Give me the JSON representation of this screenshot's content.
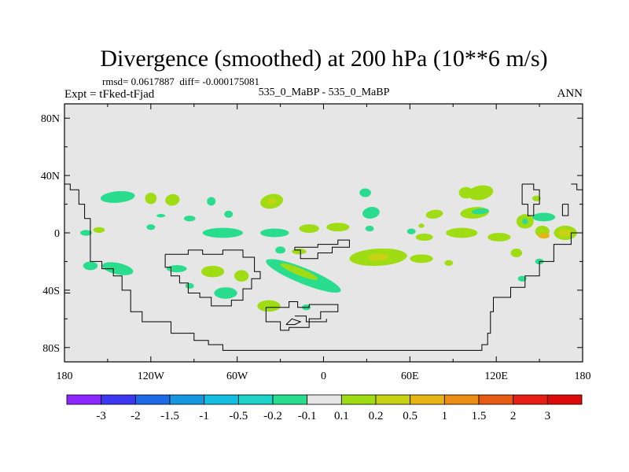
{
  "chart_data": {
    "type": "heatmap",
    "title": "Divergence (smoothed) at 200 hPa (10**6 m/s)",
    "stats_text": "rmsd= 0.0617887  diff= -0.000175081",
    "left_label": "Expt = tFked-tFjad",
    "center_label": "535_0_MaBP - 535_0_MaBP",
    "right_label": "ANN",
    "x_ticks": [
      "180",
      "120W",
      "60W",
      "0",
      "60E",
      "120E",
      "180"
    ],
    "y_ticks": [
      "80N",
      "40N",
      "0",
      "40S",
      "80S"
    ],
    "xlim": [
      -180,
      180
    ],
    "ylim": [
      -90,
      90
    ],
    "background_color": "#e6e6e6",
    "colorbar": {
      "labels": [
        "-3",
        "-2",
        "-1.5",
        "-1",
        "-0.5",
        "-0.2",
        "-0.1",
        "0.1",
        "0.2",
        "0.5",
        "1",
        "1.5",
        "2",
        "3"
      ],
      "colors": [
        "#8c28ff",
        "#3c37f0",
        "#1e69e6",
        "#1496e1",
        "#14bee1",
        "#1ed2c8",
        "#2adc8e",
        "#e6e6e6",
        "#a0dc14",
        "#c8d214",
        "#e6b414",
        "#eb8c14",
        "#e65a14",
        "#e61e14",
        "#dc0a0a"
      ]
    },
    "regions": [
      {
        "lon": -143,
        "lat": 25,
        "rlon": 12,
        "rlat": 4,
        "rot": -5,
        "color": "#2adc8e"
      },
      {
        "lon": -156,
        "lat": 2,
        "rlon": 4,
        "rlat": 2,
        "rot": 0,
        "color": "#a0dc14"
      },
      {
        "lon": -165,
        "lat": 0,
        "rlon": 4,
        "rlat": 2,
        "rot": 0,
        "color": "#2adc8e"
      },
      {
        "lon": -162,
        "lat": -23,
        "rlon": 5,
        "rlat": 3,
        "rot": 0,
        "color": "#2adc8e"
      },
      {
        "lon": -143,
        "lat": -25,
        "rlon": 11,
        "rlat": 4,
        "rot": 12,
        "color": "#2adc8e"
      },
      {
        "lon": -120,
        "lat": 24,
        "rlon": 4,
        "rlat": 4,
        "rot": 0,
        "color": "#a0dc14"
      },
      {
        "lon": -120,
        "lat": 4,
        "rlon": 3,
        "rlat": 2,
        "rot": 0,
        "color": "#2adc8e"
      },
      {
        "lon": -113,
        "lat": 12,
        "rlon": 3,
        "rlat": 1.2,
        "rot": 0,
        "color": "#2adc8e"
      },
      {
        "lon": -105,
        "lat": 23,
        "rlon": 5,
        "rlat": 4,
        "rot": -10,
        "color": "#a0dc14"
      },
      {
        "lon": -102,
        "lat": -25,
        "rlon": 7,
        "rlat": 2.5,
        "rot": 0,
        "color": "#2adc8e"
      },
      {
        "lon": -93,
        "lat": 10,
        "rlon": 4,
        "rlat": 2,
        "rot": 0,
        "color": "#2adc8e"
      },
      {
        "lon": -93,
        "lat": -37,
        "rlon": 3,
        "rlat": 2,
        "rot": 0,
        "color": "#2adc8e"
      },
      {
        "lon": -78,
        "lat": 22,
        "rlon": 3,
        "rlat": 3,
        "rot": 0,
        "color": "#2adc8e"
      },
      {
        "lon": -77,
        "lat": -27,
        "rlon": 8,
        "rlat": 4,
        "rot": 0,
        "color": "#a0dc14"
      },
      {
        "lon": -70,
        "lat": 0,
        "rlon": 14,
        "rlat": 3.5,
        "rot": 0,
        "color": "#2adc8e"
      },
      {
        "lon": -68,
        "lat": -42,
        "rlon": 8,
        "rlat": 4,
        "rot": 0,
        "color": "#2adc8e"
      },
      {
        "lon": -66,
        "lat": 13,
        "rlon": 3,
        "rlat": 2.5,
        "rot": 0,
        "color": "#2adc8e"
      },
      {
        "lon": -57,
        "lat": -30,
        "rlon": 5,
        "rlat": 4,
        "rot": 0,
        "color": "#a0dc14"
      },
      {
        "lon": -36,
        "lat": 22,
        "rlon": 8,
        "rlat": 5,
        "rot": -12,
        "color": "#a0dc14"
      },
      {
        "lon": -36,
        "lat": 22,
        "rlon": 3,
        "rlat": 2,
        "rot": 0,
        "color": "#c8d214"
      },
      {
        "lon": -34,
        "lat": 0,
        "rlon": 10,
        "rlat": 3,
        "rot": 0,
        "color": "#2adc8e"
      },
      {
        "lon": -30,
        "lat": -12,
        "rlon": 3.5,
        "rlat": 2.5,
        "rot": 0,
        "color": "#2adc8e"
      },
      {
        "lon": -10,
        "lat": 3,
        "rlon": 7,
        "rlat": 3,
        "rot": 0,
        "color": "#a0dc14"
      },
      {
        "lon": -17,
        "lat": -13,
        "rlon": 5,
        "rlat": 2,
        "rot": 0,
        "color": "#a0dc14"
      },
      {
        "lon": -14,
        "lat": -30,
        "rlon": 28,
        "rlat": 5.5,
        "rot": 22,
        "color": "#2adc8e"
      },
      {
        "lon": -17,
        "lat": -27,
        "rlon": 14,
        "rlat": 2.5,
        "rot": 22,
        "color": "#a0dc14"
      },
      {
        "lon": -12,
        "lat": -52,
        "rlon": 3,
        "rlat": 2,
        "rot": 0,
        "color": "#2adc8e"
      },
      {
        "lon": -38,
        "lat": -51,
        "rlon": 8,
        "rlat": 4,
        "rot": 0,
        "color": "#a0dc14"
      },
      {
        "lon": 10,
        "lat": 4,
        "rlon": 8,
        "rlat": 3,
        "rot": 0,
        "color": "#a0dc14"
      },
      {
        "lon": 32,
        "lat": 3,
        "rlon": 3,
        "rlat": 2,
        "rot": 0,
        "color": "#2adc8e"
      },
      {
        "lon": 29,
        "lat": 28,
        "rlon": 4,
        "rlat": 3,
        "rot": 0,
        "color": "#2adc8e"
      },
      {
        "lon": 33,
        "lat": 14,
        "rlon": 6,
        "rlat": 4,
        "rot": -10,
        "color": "#2adc8e"
      },
      {
        "lon": 38,
        "lat": -17,
        "rlon": 20,
        "rlat": 6,
        "rot": -3,
        "color": "#a0dc14"
      },
      {
        "lon": 38,
        "lat": -17,
        "rlon": 7,
        "rlat": 2.5,
        "rot": -3,
        "color": "#c8d214"
      },
      {
        "lon": 68,
        "lat": -18,
        "rlon": 8,
        "rlat": 3,
        "rot": 0,
        "color": "#a0dc14"
      },
      {
        "lon": 70,
        "lat": -3,
        "rlon": 6,
        "rlat": 2.5,
        "rot": 0,
        "color": "#a0dc14"
      },
      {
        "lon": 77,
        "lat": 13,
        "rlon": 6,
        "rlat": 3,
        "rot": -8,
        "color": "#a0dc14"
      },
      {
        "lon": 61,
        "lat": 1,
        "rlon": 3,
        "rlat": 2,
        "rot": 0,
        "color": "#2adc8e"
      },
      {
        "lon": 68,
        "lat": 5,
        "rlon": 2,
        "rlat": 1.5,
        "rot": 0,
        "color": "#a0dc14"
      },
      {
        "lon": 87,
        "lat": -21,
        "rlon": 3,
        "rlat": 2,
        "rot": 0,
        "color": "#a0dc14"
      },
      {
        "lon": 99,
        "lat": 28,
        "rlon": 5,
        "rlat": 4,
        "rot": 0,
        "color": "#a0dc14"
      },
      {
        "lon": 109,
        "lat": 28,
        "rlon": 9,
        "rlat": 5,
        "rot": -10,
        "color": "#a0dc14"
      },
      {
        "lon": 105,
        "lat": 14,
        "rlon": 10,
        "rlat": 4,
        "rot": -5,
        "color": "#a0dc14"
      },
      {
        "lon": 109,
        "lat": 15,
        "rlon": 6,
        "rlat": 2,
        "rot": -5,
        "color": "#2adc8e"
      },
      {
        "lon": 96,
        "lat": 0,
        "rlon": 11,
        "rlat": 3.5,
        "rot": 0,
        "color": "#a0dc14"
      },
      {
        "lon": 122,
        "lat": -3,
        "rlon": 8,
        "rlat": 3,
        "rot": 0,
        "color": "#a0dc14"
      },
      {
        "lon": 134,
        "lat": -14,
        "rlon": 4,
        "rlat": 3,
        "rot": 0,
        "color": "#a0dc14"
      },
      {
        "lon": 138,
        "lat": -32,
        "rlon": 3,
        "rlat": 2,
        "rot": 0,
        "color": "#2adc8e"
      },
      {
        "lon": 140,
        "lat": 8,
        "rlon": 6,
        "rlat": 5,
        "rot": 0,
        "color": "#a0dc14"
      },
      {
        "lon": 140,
        "lat": 8,
        "rlon": 2,
        "rlat": 2,
        "rot": 0,
        "color": "#2adc8e"
      },
      {
        "lon": 153,
        "lat": 11,
        "rlon": 8,
        "rlat": 3,
        "rot": 0,
        "color": "#2adc8e"
      },
      {
        "lon": 152,
        "lat": 1,
        "rlon": 5,
        "rlat": 4,
        "rot": 0,
        "color": "#a0dc14"
      },
      {
        "lon": 153,
        "lat": -2,
        "rlon": 4,
        "rlat": 2,
        "rot": 0,
        "color": "#e6b414"
      },
      {
        "lon": 168,
        "lat": 0,
        "rlon": 8,
        "rlat": 5,
        "rot": 0,
        "color": "#a0dc14"
      },
      {
        "lon": 168,
        "lat": 0,
        "rlon": 5,
        "rlat": 2.5,
        "rot": 0,
        "color": "#c8d214"
      },
      {
        "lon": 150,
        "lat": -20,
        "rlon": 3,
        "rlat": 2,
        "rot": 0,
        "color": "#2adc8e"
      },
      {
        "lon": 148,
        "lat": 24,
        "rlon": 3,
        "rlat": 2,
        "rot": 0,
        "color": "#a0dc14"
      }
    ],
    "coastlines": [
      [
        [
          -180,
          34
        ],
        [
          -176,
          34
        ],
        [
          -176,
          30
        ],
        [
          -170,
          30
        ],
        [
          -170,
          20
        ],
        [
          -166,
          20
        ],
        [
          -166,
          10
        ],
        [
          -162,
          10
        ],
        [
          -162,
          -20
        ],
        [
          -154,
          -20
        ],
        [
          -154,
          -25
        ],
        [
          -146,
          -25
        ],
        [
          -146,
          -30
        ],
        [
          -140,
          -30
        ],
        [
          -140,
          -40
        ],
        [
          -134,
          -40
        ],
        [
          -134,
          -55
        ],
        [
          -126,
          -55
        ],
        [
          -126,
          -62
        ],
        [
          -106,
          -62
        ],
        [
          -106,
          -70
        ],
        [
          -90,
          -70
        ],
        [
          -90,
          -75
        ],
        [
          -80,
          -75
        ],
        [
          -80,
          -78
        ],
        [
          -70,
          -78
        ],
        [
          -70,
          -82
        ],
        [
          110,
          -82
        ],
        [
          110,
          -78
        ],
        [
          114,
          -78
        ],
        [
          114,
          -70
        ],
        [
          116,
          -70
        ],
        [
          116,
          -55
        ],
        [
          118,
          -55
        ],
        [
          118,
          -45
        ],
        [
          130,
          -45
        ],
        [
          130,
          -38
        ],
        [
          140,
          -38
        ],
        [
          140,
          -30
        ],
        [
          150,
          -30
        ],
        [
          150,
          -20
        ],
        [
          160,
          -20
        ],
        [
          160,
          -8
        ],
        [
          172,
          -8
        ],
        [
          172,
          0
        ],
        [
          180,
          0
        ]
      ],
      [
        [
          -180,
          -42
        ],
        [
          -176,
          -42
        ]
      ],
      [
        [
          -110,
          -15
        ],
        [
          -94,
          -15
        ],
        [
          -94,
          -12
        ],
        [
          -84,
          -12
        ],
        [
          -84,
          -15
        ],
        [
          -70,
          -15
        ],
        [
          -70,
          -12
        ],
        [
          -56,
          -12
        ],
        [
          -56,
          -17
        ],
        [
          -48,
          -17
        ],
        [
          -48,
          -27
        ],
        [
          -44,
          -27
        ],
        [
          -44,
          -32
        ],
        [
          -50,
          -32
        ],
        [
          -50,
          -39
        ],
        [
          -56,
          -39
        ],
        [
          -56,
          -47
        ],
        [
          -64,
          -47
        ],
        [
          -64,
          -51
        ],
        [
          -78,
          -51
        ],
        [
          -78,
          -45
        ],
        [
          -86,
          -45
        ],
        [
          -86,
          -42
        ],
        [
          -94,
          -42
        ],
        [
          -94,
          -35
        ],
        [
          -100,
          -35
        ],
        [
          -100,
          -30
        ],
        [
          -106,
          -30
        ],
        [
          -106,
          -24
        ],
        [
          -110,
          -24
        ],
        [
          -110,
          -15
        ]
      ],
      [
        [
          -20,
          -10
        ],
        [
          -4,
          -10
        ],
        [
          -4,
          -8
        ],
        [
          10,
          -8
        ],
        [
          10,
          -5
        ],
        [
          18,
          -5
        ],
        [
          18,
          -10
        ],
        [
          6,
          -10
        ],
        [
          6,
          -14
        ],
        [
          -4,
          -14
        ],
        [
          -4,
          -18
        ],
        [
          -16,
          -18
        ],
        [
          -16,
          -12
        ],
        [
          -20,
          -12
        ],
        [
          -20,
          -10
        ]
      ],
      [
        [
          -40,
          -52
        ],
        [
          -24,
          -52
        ],
        [
          -24,
          -48
        ],
        [
          -18,
          -48
        ],
        [
          -18,
          -52
        ],
        [
          -10,
          -52
        ],
        [
          -10,
          -50
        ],
        [
          10,
          -50
        ],
        [
          10,
          -55
        ],
        [
          -2,
          -55
        ],
        [
          -2,
          -60
        ],
        [
          -10,
          -60
        ],
        [
          -10,
          -66
        ],
        [
          -24,
          -66
        ],
        [
          -24,
          -68
        ],
        [
          -30,
          -68
        ],
        [
          -30,
          -62
        ],
        [
          -40,
          -62
        ],
        [
          -40,
          -52
        ]
      ],
      [
        [
          -20,
          -58
        ],
        [
          -12,
          -58
        ],
        [
          -12,
          -62
        ],
        [
          2,
          -62
        ],
        [
          2,
          -60
        ]
      ],
      [
        [
          -26,
          -64
        ],
        [
          -22,
          -60
        ],
        [
          -16,
          -62
        ],
        [
          -20,
          -64
        ],
        [
          -26,
          -64
        ]
      ],
      [
        [
          138,
          34
        ],
        [
          146,
          34
        ],
        [
          146,
          30
        ],
        [
          150,
          30
        ],
        [
          150,
          20
        ],
        [
          146,
          20
        ],
        [
          146,
          12
        ],
        [
          142,
          12
        ],
        [
          142,
          20
        ],
        [
          138,
          20
        ],
        [
          138,
          34
        ]
      ],
      [
        [
          172,
          34
        ],
        [
          176,
          34
        ],
        [
          176,
          30
        ],
        [
          180,
          30
        ]
      ],
      [
        [
          166,
          20
        ],
        [
          170,
          20
        ],
        [
          170,
          12
        ],
        [
          166,
          12
        ],
        [
          166,
          20
        ]
      ]
    ]
  }
}
